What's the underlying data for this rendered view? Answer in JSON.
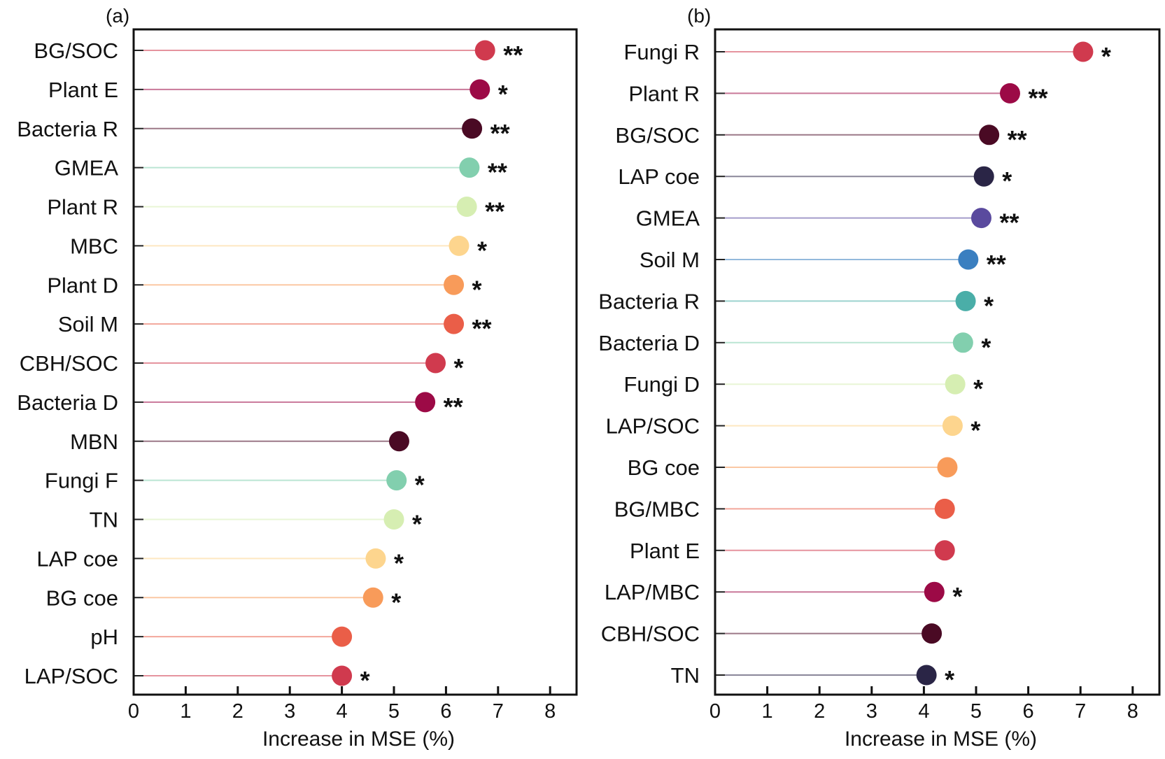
{
  "chart_data": [
    {
      "type": "lollipop",
      "panel_label": "(a)",
      "xlabel": "Increase in MSE (%)",
      "xlim": [
        0,
        8.5
      ],
      "xticks": [
        "0",
        "1",
        "2",
        "3",
        "4",
        "5",
        "6",
        "7",
        "8"
      ],
      "categories": [
        "BG/SOC",
        "Plant E",
        "Bacteria R",
        "GMEA",
        "Plant R",
        "MBC",
        "Plant D",
        "Soil M",
        "CBH/SOC",
        "Bacteria D",
        "MBN",
        "Fungi F",
        "TN",
        "LAP coe",
        "BG coe",
        "pH",
        "LAP/SOC"
      ],
      "values": [
        6.75,
        6.65,
        6.5,
        6.45,
        6.4,
        6.25,
        6.15,
        6.15,
        5.8,
        5.6,
        5.1,
        5.05,
        5.0,
        4.65,
        4.6,
        4.0,
        4.0
      ],
      "significance": [
        "**",
        "*",
        "**",
        "**",
        "**",
        "*",
        "*",
        "**",
        "*",
        "**",
        "",
        "*",
        "*",
        "*",
        "*",
        "",
        "*"
      ],
      "colors": [
        "#d03a4e",
        "#9c0a46",
        "#4a0a24",
        "#82cfae",
        "#d6eeb2",
        "#fdd58e",
        "#f89b5a",
        "#ea5e48",
        "#d03a4e",
        "#9c0a46",
        "#4a0a24",
        "#82cfae",
        "#d6eeb2",
        "#fdd58e",
        "#f89b5a",
        "#ea5e48",
        "#d03a4e"
      ]
    },
    {
      "type": "lollipop",
      "panel_label": "(b)",
      "xlabel": "Increase in MSE (%)",
      "xlim": [
        0,
        8.5
      ],
      "xticks": [
        "0",
        "1",
        "2",
        "3",
        "4",
        "5",
        "6",
        "7",
        "8"
      ],
      "categories": [
        "Fungi R",
        "Plant R",
        "BG/SOC",
        "LAP coe",
        "GMEA",
        "Soil M",
        "Bacteria R",
        "Bacteria D",
        "Fungi D",
        "LAP/SOC",
        "BG coe",
        "BG/MBC",
        "Plant E",
        "LAP/MBC",
        "CBH/SOC",
        "TN"
      ],
      "values": [
        7.05,
        5.65,
        5.25,
        5.15,
        5.1,
        4.85,
        4.8,
        4.75,
        4.6,
        4.55,
        4.45,
        4.4,
        4.4,
        4.2,
        4.15,
        4.05
      ],
      "significance": [
        "*",
        "**",
        "**",
        "*",
        "**",
        "**",
        "*",
        "*",
        "*",
        "*",
        "",
        "",
        "",
        "*",
        "",
        "*"
      ],
      "colors": [
        "#d03a4e",
        "#9c0a46",
        "#4a0a24",
        "#2a2546",
        "#5a4a9e",
        "#3a7fc0",
        "#4aaea8",
        "#82cfae",
        "#d6eeb2",
        "#fdd58e",
        "#f89b5a",
        "#ea5e48",
        "#d03a4e",
        "#9c0a46",
        "#4a0a24",
        "#2a2546"
      ]
    }
  ]
}
